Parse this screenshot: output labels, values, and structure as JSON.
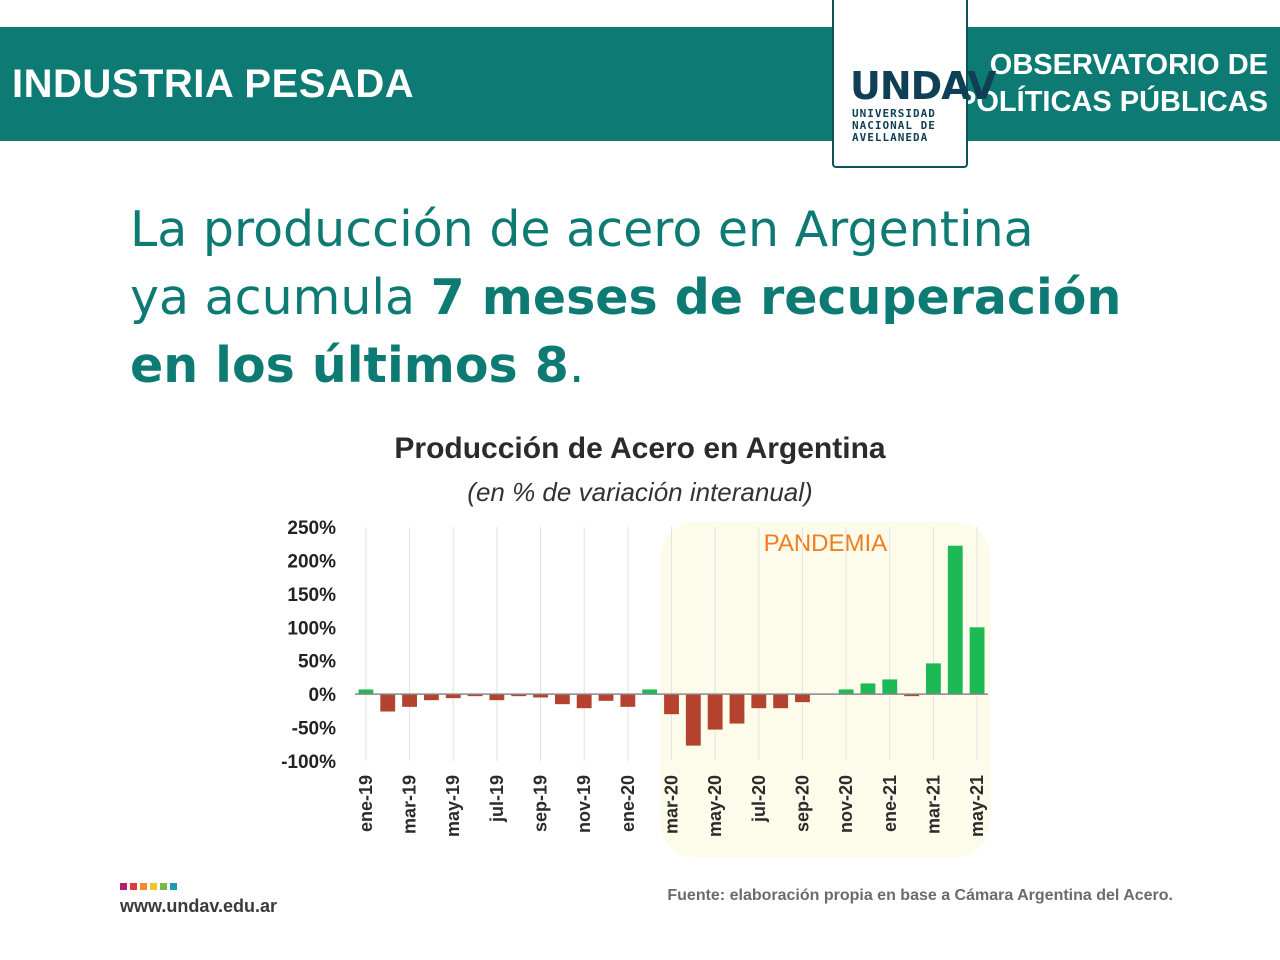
{
  "header": {
    "section_title": "INDUSTRIA PESADA",
    "observatory_line1": "OBSERVATORIO DE",
    "observatory_line2": "POLÍTICAS PÚBLICAS",
    "logo_mark": "UNDAV",
    "logo_line1": "UNIVERSIDAD",
    "logo_line2": "NACIONAL DE",
    "logo_line3": "AVELLANEDA"
  },
  "headline": {
    "line1": "La producción de acero en Argentina",
    "line2_regular": "ya acumula ",
    "line2_bold": "7 meses de recuperación",
    "line3_bold": "en los últimos 8",
    "line3_end": "."
  },
  "footer": {
    "url": "www.undav.edu.ar",
    "source": "Fuente: elaboración propia en base a Cámara Argentina del Acero.",
    "dot_colors": [
      "#b0206e",
      "#e03a3e",
      "#f28c28",
      "#f7c325",
      "#7ab648",
      "#1f9bb5"
    ]
  },
  "colors": {
    "brand_teal": "#0d7b73",
    "positive_bar": "#1db954",
    "negative_bar": "#b5412f",
    "pandemic_bg": "#fdfbea",
    "pandemic_label": "#f07d20"
  },
  "chart_data": {
    "type": "bar",
    "title": "Producción de Acero en Argentina",
    "subtitle": "(en % de variación interanual)",
    "annotation": "PANDEMIA",
    "annotation_range": [
      "mar-20",
      "may-21"
    ],
    "ylim": [
      -100,
      250
    ],
    "yticks": [
      250,
      200,
      150,
      100,
      50,
      0,
      -50,
      -100
    ],
    "ytick_labels": [
      "250%",
      "200%",
      "150%",
      "100%",
      "50%",
      "0%",
      "-50%",
      "-100%"
    ],
    "grid": true,
    "categories": [
      "ene-19",
      "feb-19",
      "mar-19",
      "abr-19",
      "may-19",
      "jun-19",
      "jul-19",
      "ago-19",
      "sep-19",
      "oct-19",
      "nov-19",
      "dic-19",
      "ene-20",
      "feb-20",
      "mar-20",
      "abr-20",
      "may-20",
      "jun-20",
      "jul-20",
      "ago-20",
      "sep-20",
      "oct-20",
      "nov-20",
      "dic-20",
      "ene-21",
      "feb-21",
      "mar-21",
      "abr-21",
      "may-21"
    ],
    "visible_tick_labels": [
      "ene-19",
      "mar-19",
      "may-19",
      "jul-19",
      "sep-19",
      "nov-19",
      "ene-20",
      "mar-20",
      "may-20",
      "jul-20",
      "sep-20",
      "nov-20",
      "ene-21",
      "mar-21",
      "may-21"
    ],
    "values": [
      7,
      -26,
      -19,
      -9,
      -6,
      -3,
      -9,
      -3,
      -5,
      -15,
      -21,
      -10,
      -19,
      7,
      -30,
      -77,
      -53,
      -44,
      -21,
      -21,
      -12,
      0,
      7,
      16,
      22,
      -3,
      46,
      222,
      100
    ]
  }
}
